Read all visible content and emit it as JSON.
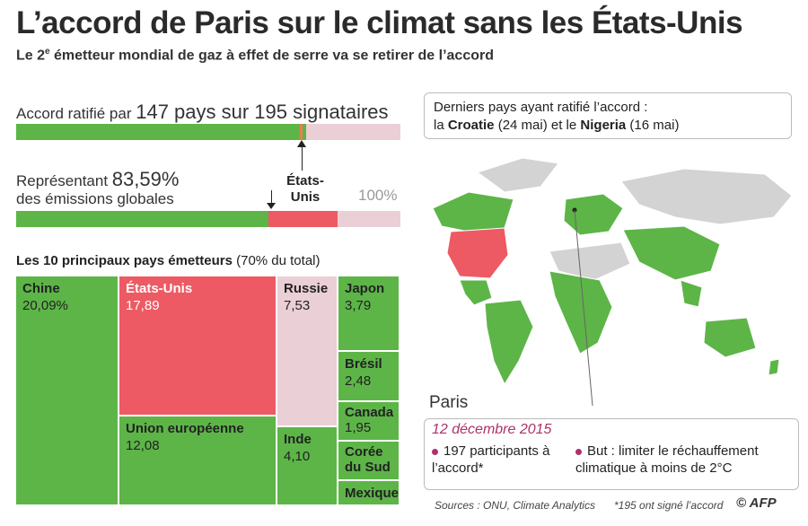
{
  "header": {
    "title": "L’accord de Paris sur le climat sans les États-Unis",
    "subtitle_pre": "Le 2",
    "subtitle_sup": "e",
    "subtitle_post": " émetteur mondial de gaz à effet de serre va se retirer de l’accord"
  },
  "ratification": {
    "label_pre": "Accord ratifié par ",
    "label_big": "147 pays sur 195 signataires",
    "ratified": 147,
    "total": 195
  },
  "emissions": {
    "label_pre": "Représentant ",
    "label_big": "83,59%",
    "label_line2": "des émissions globales",
    "us_label": "États-Unis",
    "hundred_label": "100%",
    "represented_pct": 83.59,
    "us_pct": 17.89
  },
  "colors": {
    "green": "#5db548",
    "red": "#ed5a63",
    "pink": "#ebcfd6",
    "grey": "#d3d3d3",
    "magenta": "#b0306a"
  },
  "treemap": {
    "heading": "Les 10 principaux pays émetteurs",
    "heading_note": " (70% du total)",
    "items": [
      {
        "name": "Chine",
        "value": "20,09%"
      },
      {
        "name": "États-Unis",
        "value": "17,89"
      },
      {
        "name": "Russie",
        "value": "7,53"
      },
      {
        "name": "Japon",
        "value": "3,79"
      },
      {
        "name": "Brésil",
        "value": "2,48"
      },
      {
        "name": "Canada",
        "value": "1,95"
      },
      {
        "name": "Corée du Sud",
        "value": ""
      },
      {
        "name": "Mexique",
        "value": ""
      },
      {
        "name": "Union européenne",
        "value": "12,08"
      },
      {
        "name": "Inde",
        "value": "4,10"
      }
    ]
  },
  "chart_data": {
    "type": "bar",
    "title": "Les 10 principaux pays émetteurs",
    "categories": [
      "Chine",
      "États-Unis",
      "Union européenne",
      "Russie",
      "Inde",
      "Japon",
      "Brésil",
      "Canada",
      "Corée du Sud",
      "Mexique"
    ],
    "values": [
      20.09,
      17.89,
      12.08,
      7.53,
      4.1,
      3.79,
      2.48,
      1.95,
      null,
      null
    ]
  },
  "info": {
    "line1": "Derniers pays ayant ratifié l’accord :",
    "pre": "la ",
    "c1": "Croatie",
    "d1": " (24 mai)  et le ",
    "c2": "Nigeria",
    "d2": " (16 mai)"
  },
  "paris": {
    "label": "Paris",
    "date": "12 décembre 2015",
    "b1": "197 participants à l’accord*",
    "b2": "But : limiter le réchauffement climatique à moins de 2°C"
  },
  "footer": {
    "sources": "Sources : ONU, Climate Analytics",
    "note": "*195 ont signé l’accord",
    "logo": "© AFP"
  }
}
